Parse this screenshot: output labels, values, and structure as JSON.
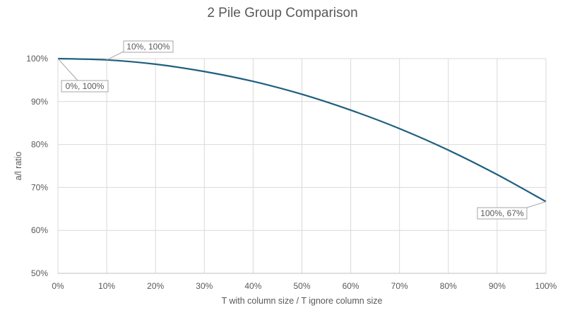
{
  "chart_data": {
    "type": "line",
    "title": "2 Pile Group Comparison",
    "xlabel": "T with column size / T ignore column size",
    "ylabel": "a/l ratio",
    "xlim": [
      0,
      100
    ],
    "ylim": [
      50,
      100
    ],
    "x_ticks": [
      "0%",
      "10%",
      "20%",
      "30%",
      "40%",
      "50%",
      "60%",
      "70%",
      "80%",
      "90%",
      "100%"
    ],
    "y_ticks": [
      "50%",
      "60%",
      "70%",
      "80%",
      "90%",
      "100%"
    ],
    "grid": true,
    "legend": "none",
    "series": [
      {
        "color": "#1f5f7f",
        "x": [
          0,
          10,
          20,
          30,
          40,
          50,
          60,
          70,
          80,
          90,
          100
        ],
        "y": [
          100,
          99.7,
          98.7,
          97.0,
          94.7,
          91.7,
          88.0,
          83.7,
          78.7,
          73.0,
          66.7
        ]
      }
    ],
    "annotations": [
      {
        "text": "0%, 100%",
        "x": 0,
        "y": 100
      },
      {
        "text": "10%, 100%",
        "x": 10,
        "y": 99.7
      },
      {
        "text": "100%, 67%",
        "x": 100,
        "y": 66.7
      }
    ]
  }
}
